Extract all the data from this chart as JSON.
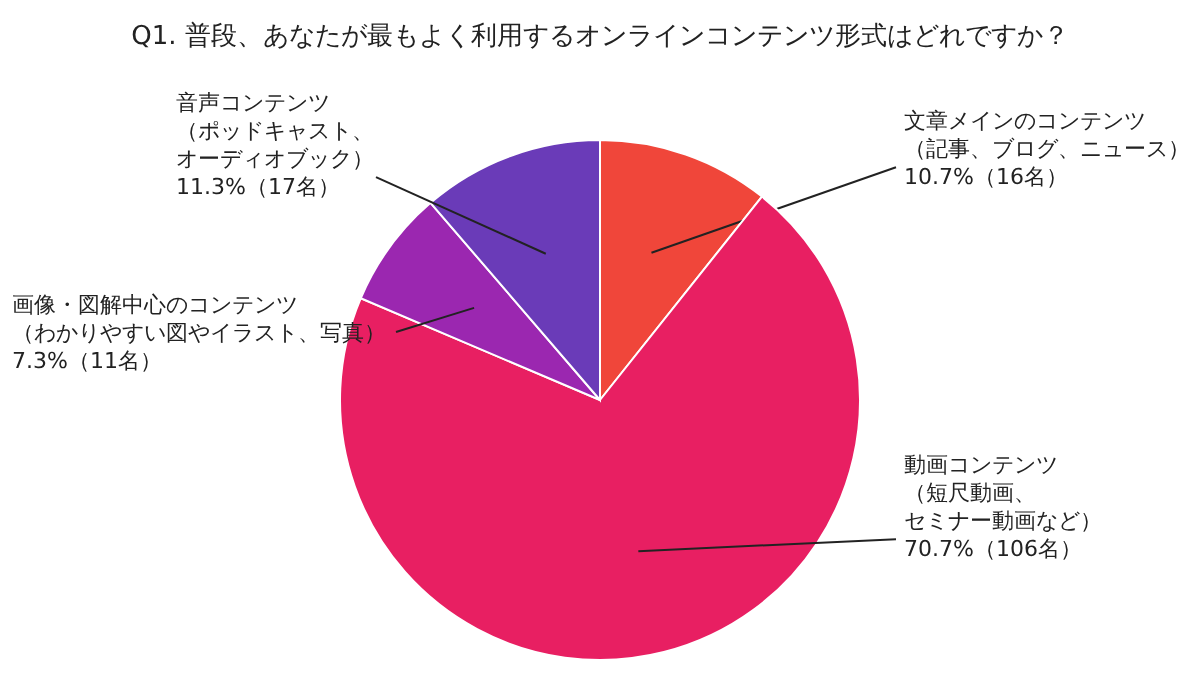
{
  "chart_data": {
    "type": "pie",
    "title": "Q1. 普段、あなたが最もよく利用するオンラインコンテンツ形式はどれですか？",
    "categories": [
      "文章メインのコンテンツ（記事、ブログ、ニュース）",
      "動画コンテンツ（短尺動画、セミナー動画など）",
      "画像・図解中心のコンテンツ（わかりやすい図やイラスト、写真）",
      "音声コンテンツ（ポッドキャスト、オーディオブック）"
    ],
    "values": [
      10.7,
      70.7,
      7.3,
      11.3
    ],
    "colors": [
      "#f0463a",
      "#e81f62",
      "#9b27b0",
      "#6a3bb8"
    ],
    "value_labels": [
      "10.7%（16名）",
      "70.7%（106名）",
      "7.3%（11名）",
      "11.3%（17名）"
    ]
  }
}
